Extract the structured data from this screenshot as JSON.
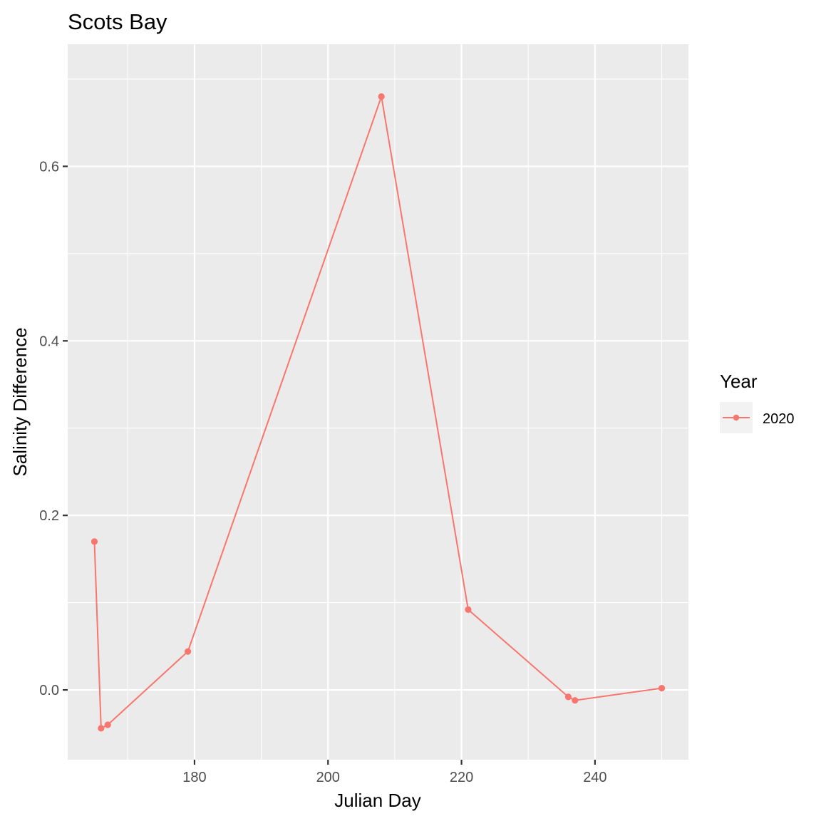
{
  "chart_data": {
    "type": "line",
    "title": "Scots Bay",
    "xlabel": "Julian Day",
    "ylabel": "Salinity Difference",
    "xlim": [
      161,
      254
    ],
    "ylim": [
      -0.08,
      0.74
    ],
    "x_major_ticks": [
      180,
      200,
      220,
      240
    ],
    "x_minor_ticks": [
      170,
      190,
      210,
      230,
      250
    ],
    "y_major_ticks": [
      0.0,
      0.2,
      0.4,
      0.6
    ],
    "y_minor_ticks": [
      -0.1,
      0.1,
      0.3,
      0.5,
      0.7
    ],
    "x_tick_labels": [
      "180",
      "200",
      "220",
      "240"
    ],
    "y_tick_labels": [
      "0.0",
      "0.2",
      "0.4",
      "0.6"
    ],
    "grid": true,
    "legend": {
      "title": "Year",
      "position": "right"
    },
    "series": [
      {
        "name": "2020",
        "color": "#F8766D",
        "x": [
          165,
          166,
          167,
          179,
          208,
          221,
          236,
          237,
          250
        ],
        "y": [
          0.17,
          -0.044,
          -0.04,
          0.044,
          0.68,
          0.092,
          -0.008,
          -0.012,
          0.002
        ]
      }
    ]
  },
  "colors": {
    "panel_background": "#EBEBEB",
    "grid": "#FFFFFF",
    "series": "#F8766D"
  }
}
